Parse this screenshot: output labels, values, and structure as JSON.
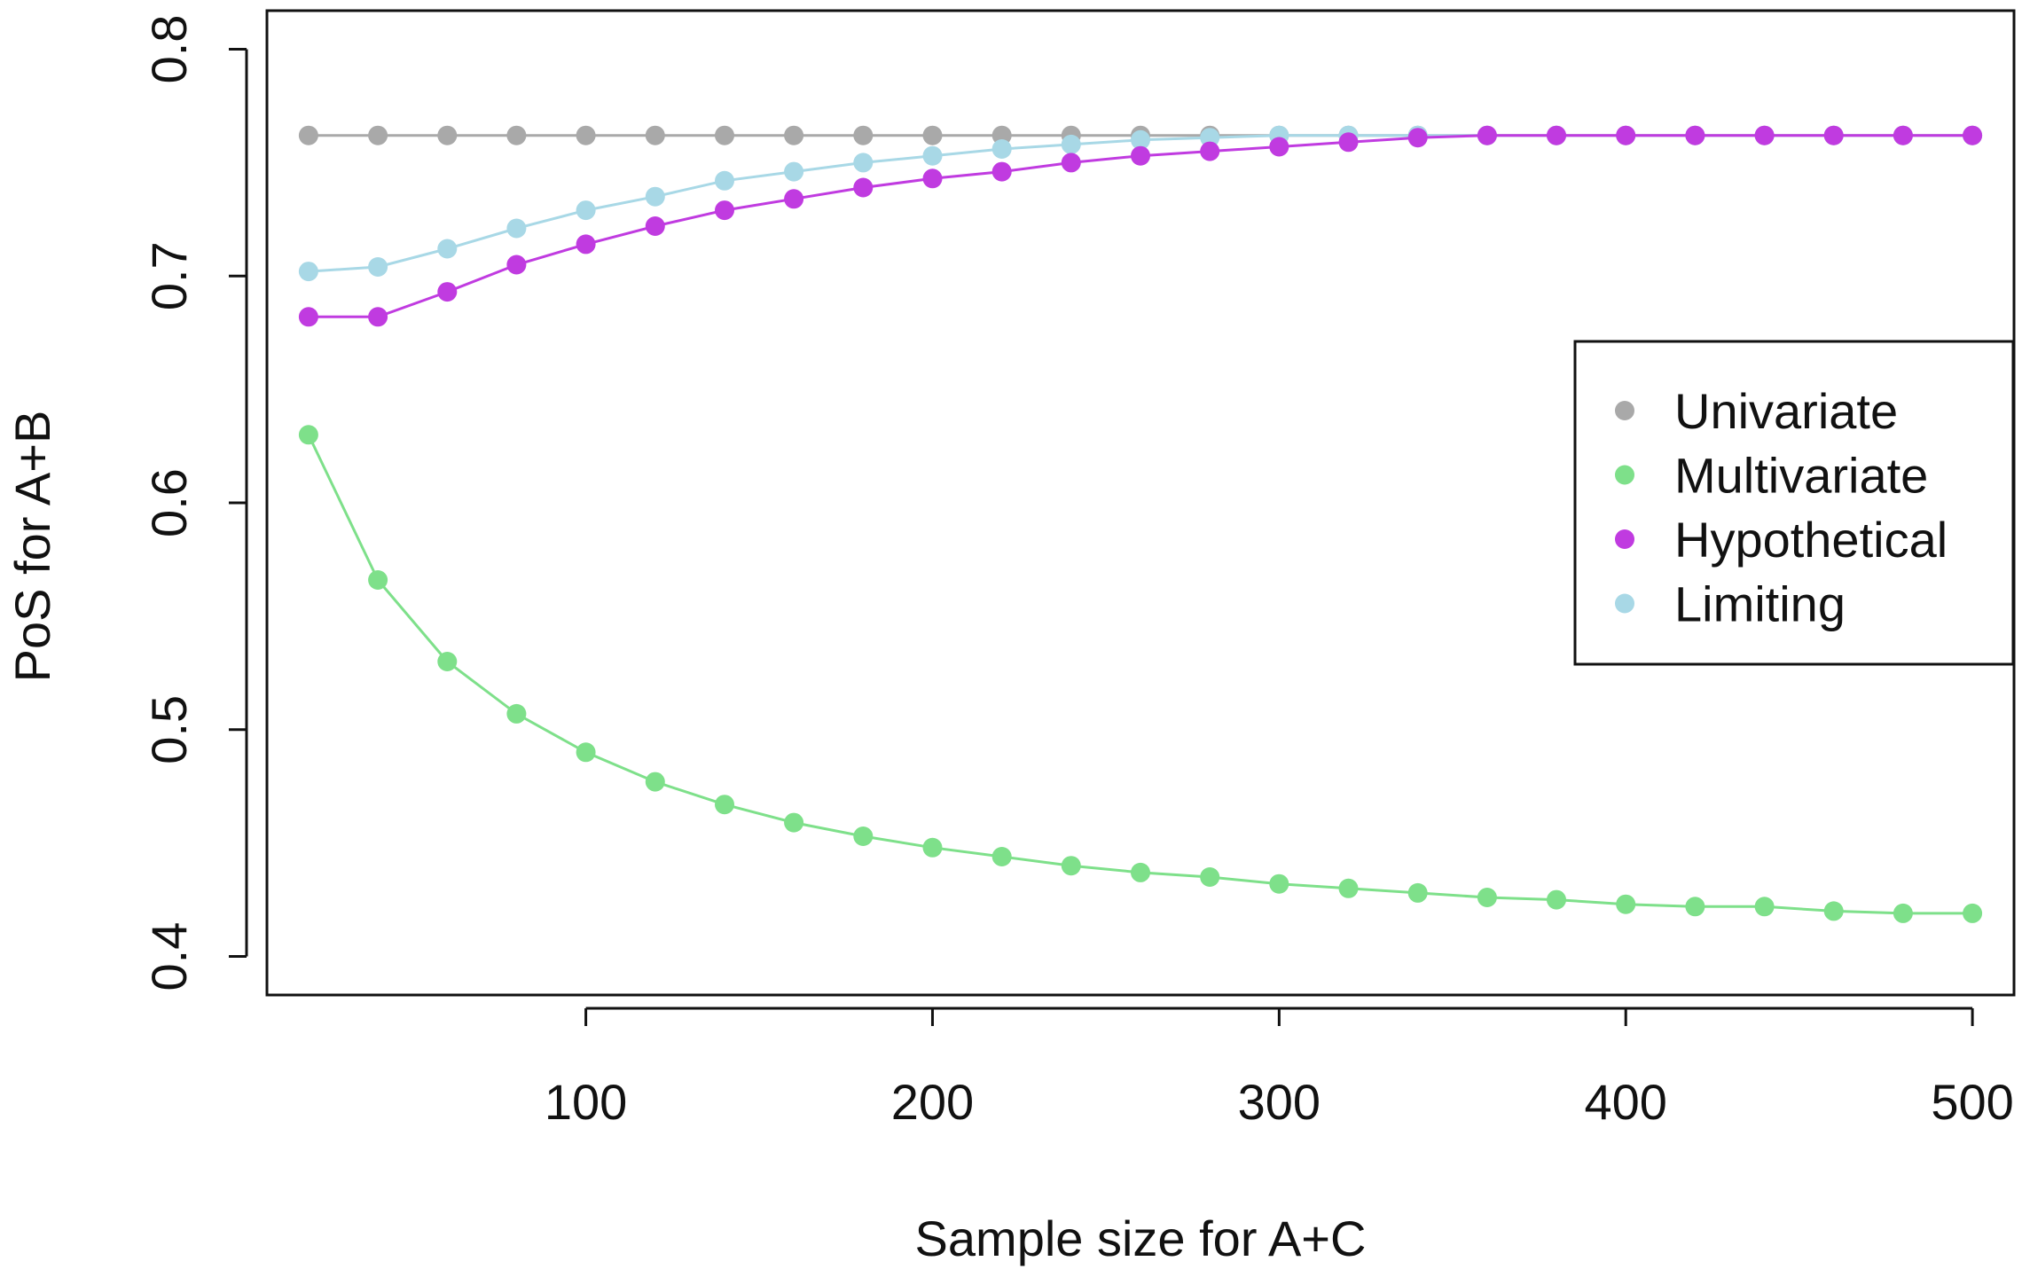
{
  "chart_data": {
    "type": "line",
    "title": "",
    "xlabel": "Sample size for A+C",
    "ylabel": "PoS for A+B",
    "xlim": [
      8,
      512
    ],
    "ylim": [
      0.383,
      0.817
    ],
    "x_ticks": [
      {
        "value": 100,
        "label": "100"
      },
      {
        "value": 200,
        "label": "200"
      },
      {
        "value": 300,
        "label": "300"
      },
      {
        "value": 400,
        "label": "400"
      },
      {
        "value": 500,
        "label": "500"
      }
    ],
    "y_ticks": [
      {
        "value": 0.4,
        "label": "0.4"
      },
      {
        "value": 0.5,
        "label": "0.5"
      },
      {
        "value": 0.6,
        "label": "0.6"
      },
      {
        "value": 0.7,
        "label": "0.7"
      },
      {
        "value": 0.8,
        "label": "0.8"
      }
    ],
    "grid": false,
    "legend_position": "right",
    "x": [
      20,
      40,
      60,
      80,
      100,
      120,
      140,
      160,
      180,
      200,
      220,
      240,
      260,
      280,
      300,
      320,
      340,
      360,
      380,
      400,
      420,
      440,
      460,
      480,
      500
    ],
    "series": [
      {
        "name": "Univariate",
        "color": "#a9a9a9",
        "values": [
          0.762,
          0.762,
          0.762,
          0.762,
          0.762,
          0.762,
          0.762,
          0.762,
          0.762,
          0.762,
          0.762,
          0.762,
          0.762,
          0.762,
          0.762,
          0.762,
          0.762,
          0.762,
          0.762,
          0.762,
          0.762,
          0.762,
          0.762,
          0.762,
          0.762
        ]
      },
      {
        "name": "Multivariate",
        "color": "#7ee08a",
        "values": [
          0.63,
          0.566,
          0.53,
          0.507,
          0.49,
          0.477,
          0.467,
          0.459,
          0.453,
          0.448,
          0.444,
          0.44,
          0.437,
          0.435,
          0.432,
          0.43,
          0.428,
          0.426,
          0.425,
          0.423,
          0.422,
          0.422,
          0.42,
          0.419,
          0.419
        ]
      },
      {
        "name": "Hypothetical",
        "color": "#c03be0",
        "values": [
          0.682,
          0.682,
          0.693,
          0.705,
          0.714,
          0.722,
          0.729,
          0.734,
          0.739,
          0.743,
          0.746,
          0.75,
          0.753,
          0.755,
          0.757,
          0.759,
          0.761,
          0.762,
          0.762,
          0.762,
          0.762,
          0.762,
          0.762,
          0.762,
          0.762
        ]
      },
      {
        "name": "Limiting",
        "color": "#a8d8e6",
        "values": [
          0.702,
          0.704,
          0.712,
          0.721,
          0.729,
          0.735,
          0.742,
          0.746,
          0.75,
          0.753,
          0.756,
          0.758,
          0.76,
          0.761,
          0.762,
          0.762,
          0.762,
          0.762,
          0.762,
          0.762,
          0.762,
          0.762,
          0.762,
          0.762,
          0.762
        ]
      }
    ],
    "draw_order": [
      "Multivariate",
      "Univariate",
      "Limiting",
      "Hypothetical"
    ]
  }
}
